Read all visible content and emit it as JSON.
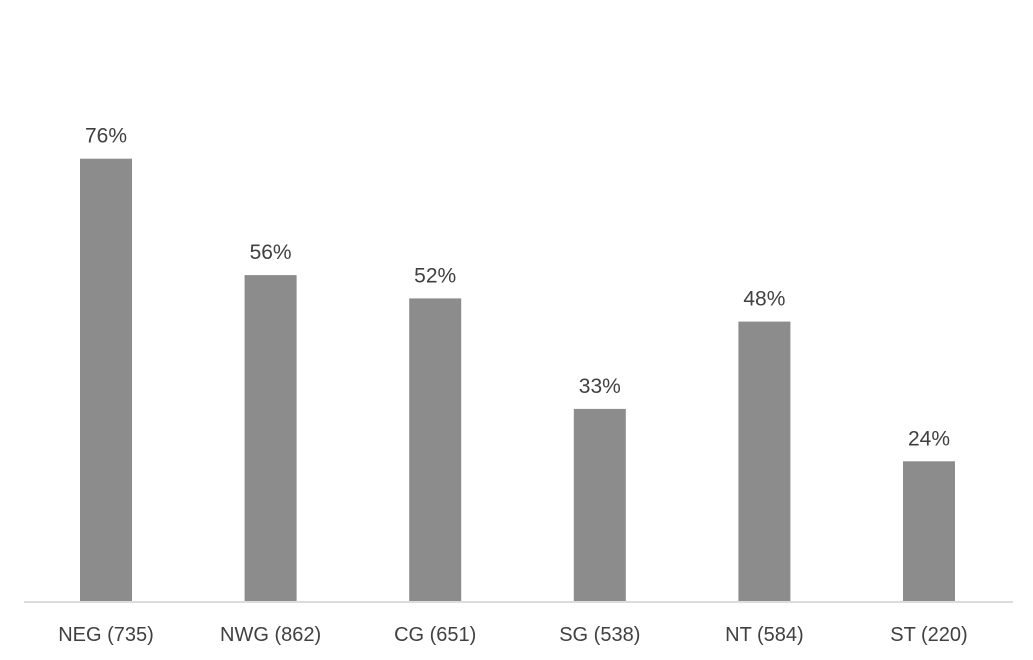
{
  "chart_data": {
    "type": "bar",
    "categories": [
      "NEG (735)",
      "NWG (862)",
      "CG (651)",
      "SG (538)",
      "NT (584)",
      "ST (220)"
    ],
    "values": [
      76,
      56,
      52,
      33,
      48,
      24
    ],
    "value_labels": [
      "76%",
      "56%",
      "52%",
      "33%",
      "48%",
      "24%"
    ],
    "title": "",
    "xlabel": "",
    "ylabel": "",
    "ylim": [
      0,
      100
    ],
    "grid": false,
    "legend": "none",
    "bar_color": "#8c8c8c"
  }
}
